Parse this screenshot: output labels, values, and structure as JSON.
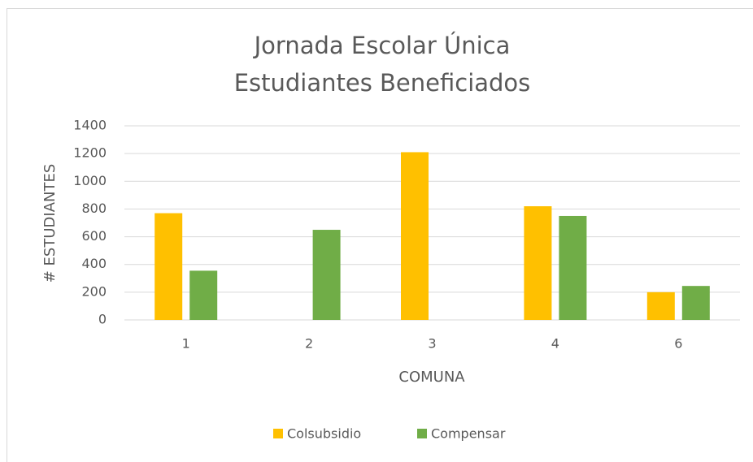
{
  "chart_data": {
    "type": "bar",
    "title": "Jornada Escolar Única",
    "subtitle": "Estudiantes Beneficiados",
    "x_label": "COMUNA",
    "y_label": "# ESTUDIANTES",
    "categories": [
      "1",
      "2",
      "3",
      "4",
      "6"
    ],
    "series": [
      {
        "name": "Colsubsidio",
        "color": "#ffc000",
        "values": [
          770,
          null,
          1210,
          820,
          200
        ]
      },
      {
        "name": "Compensar",
        "color": "#70ad47",
        "values": [
          355,
          650,
          null,
          750,
          245
        ]
      }
    ],
    "ylim": [
      0,
      1400
    ],
    "yticks": [
      0,
      200,
      400,
      600,
      800,
      1000,
      1200,
      1400
    ],
    "grid": true,
    "legend": "bottom"
  }
}
